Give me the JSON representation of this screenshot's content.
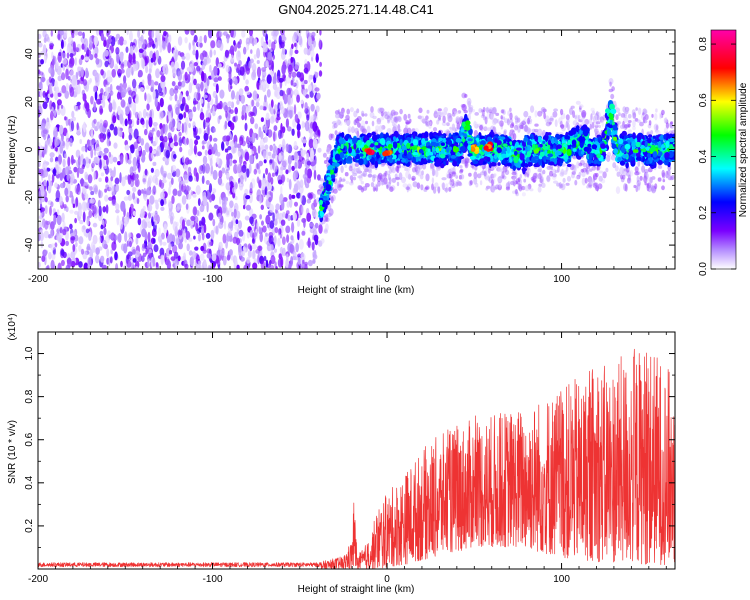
{
  "figure": {
    "title": "GN04.2025.271.14.48.C41"
  },
  "chart_data": [
    {
      "type": "heatmap",
      "description_kind": "spectrogram",
      "xlabel": "Height of straight line (km)",
      "ylabel": "Frequency (Hz)",
      "xlim": [
        -200,
        165
      ],
      "ylim": [
        -50,
        50
      ],
      "xticks": [
        -200,
        -100,
        0,
        100
      ],
      "yticks": [
        -40,
        -20,
        0,
        20,
        40
      ],
      "colorbar": {
        "label": "Normalized spectral amplitude",
        "range": [
          0.0,
          0.85
        ],
        "ticks": [
          0.0,
          0.2,
          0.4,
          0.6,
          0.8
        ],
        "colormap": [
          "#ffffff",
          "#7a00ff",
          "#0000ff",
          "#00ffff",
          "#00ff00",
          "#ffff00",
          "#ff0000",
          "#ff00aa"
        ]
      },
      "regions": [
        {
          "x_range": [
            -200,
            -38
          ],
          "f_range": [
            -50,
            50
          ],
          "amplitude": "low broadband noise (~0.05-0.15)"
        },
        {
          "x_range": [
            -38,
            165
          ],
          "f_center": 0,
          "f_halfwidth": 7,
          "amplitude": "0.2-0.8 narrow band near 0 Hz"
        }
      ],
      "features": [
        {
          "x": -38,
          "f": -25,
          "note": "band onset dips to about -25 Hz"
        },
        {
          "x": -10,
          "f": 0,
          "amplitude": 0.8
        },
        {
          "x": 0,
          "f": -1,
          "amplitude": 0.75
        },
        {
          "x": 45,
          "f": 10,
          "amplitude": 0.5
        },
        {
          "x": 50,
          "f": 0,
          "amplitude": 0.7
        },
        {
          "x": 58,
          "f": 1,
          "amplitude": 0.75
        },
        {
          "x": 128,
          "f": 17,
          "amplitude": 0.4
        }
      ]
    },
    {
      "type": "line",
      "xlabel": "Height of straight line (km)",
      "ylabel": "SNR (10 * v/v)",
      "yscale_label": "(x10⁴)",
      "xlim": [
        -200,
        165
      ],
      "ylim": [
        0,
        1.1
      ],
      "xticks": [
        -200,
        -100,
        0,
        100
      ],
      "yticks": [
        0.2,
        0.4,
        0.6,
        0.8,
        1.0
      ],
      "series": [
        {
          "color": "#ee3333",
          "envelope": [
            {
              "x": -200,
              "low": 0.0,
              "high": 0.03
            },
            {
              "x": -40,
              "low": 0.0,
              "high": 0.03
            },
            {
              "x": -25,
              "low": 0.0,
              "high": 0.06
            },
            {
              "x": -20,
              "low": 0.0,
              "high": 0.14
            },
            {
              "x": -19,
              "low": 0.0,
              "high": 0.35
            },
            {
              "x": -17,
              "low": 0.0,
              "high": 0.06
            },
            {
              "x": -10,
              "low": 0.0,
              "high": 0.14
            },
            {
              "x": -5,
              "low": 0.0,
              "high": 0.3
            },
            {
              "x": 10,
              "low": 0.02,
              "high": 0.45
            },
            {
              "x": 25,
              "low": 0.05,
              "high": 0.6
            },
            {
              "x": 50,
              "low": 0.1,
              "high": 0.7
            },
            {
              "x": 75,
              "low": 0.1,
              "high": 0.75
            },
            {
              "x": 100,
              "low": 0.05,
              "high": 0.85
            },
            {
              "x": 125,
              "low": 0.03,
              "high": 0.95
            },
            {
              "x": 150,
              "low": 0.02,
              "high": 1.05
            },
            {
              "x": 165,
              "low": 0.02,
              "high": 0.9
            }
          ]
        }
      ]
    }
  ]
}
